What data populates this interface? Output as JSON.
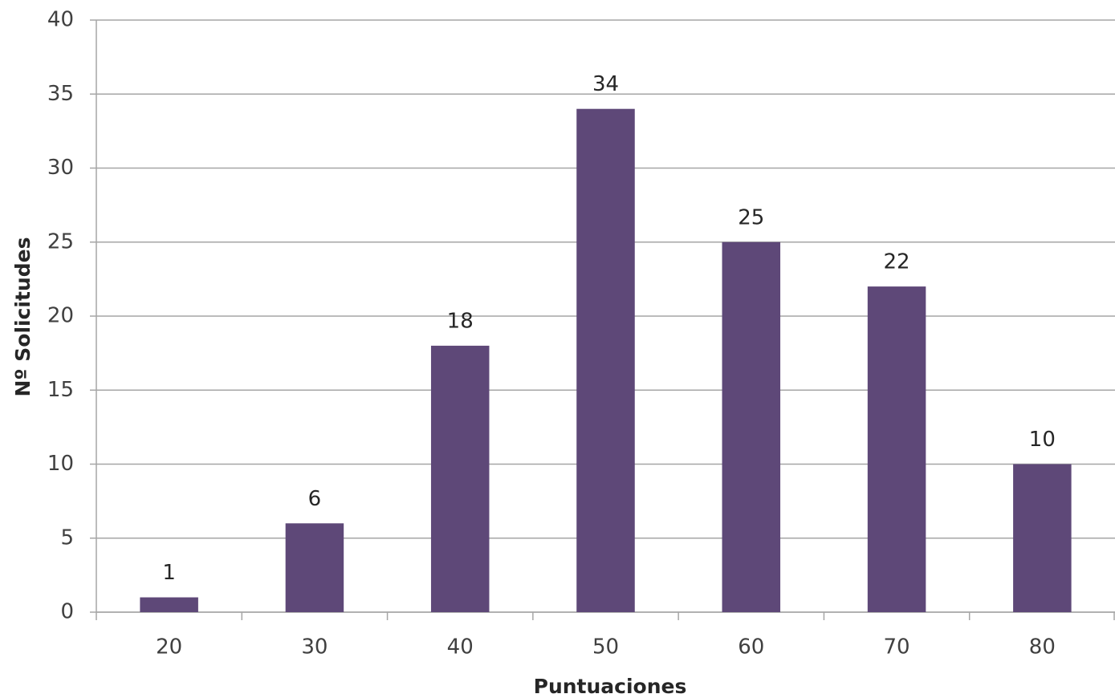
{
  "chart_data": {
    "type": "bar",
    "x_label": "Puntuaciones",
    "y_label": "Nº Solicitudes",
    "categories": [
      "20",
      "30",
      "40",
      "50",
      "60",
      "70",
      "80"
    ],
    "values": [
      1,
      6,
      18,
      34,
      25,
      22,
      10
    ],
    "color": "#5e4878",
    "ylim": [
      0,
      40
    ],
    "yticks": [
      0,
      5,
      10,
      15,
      20,
      25,
      30,
      35,
      40
    ],
    "grid": true
  }
}
